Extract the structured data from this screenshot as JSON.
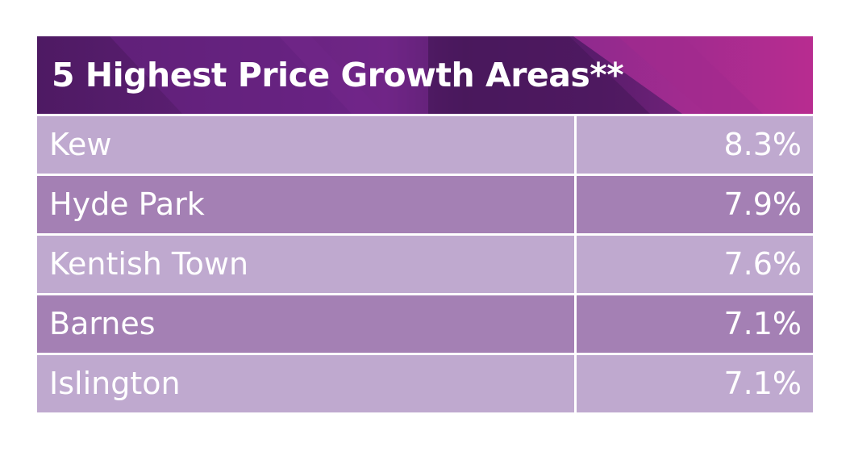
{
  "table": {
    "title": "5 Highest Price Growth Areas**",
    "rows": [
      {
        "area": "Kew",
        "growth": "8.3%"
      },
      {
        "area": "Hyde Park",
        "growth": "7.9%"
      },
      {
        "area": "Kentish Town",
        "growth": "7.6%"
      },
      {
        "area": "Barnes",
        "growth": "7.1%"
      },
      {
        "area": "Islington",
        "growth": "7.1%"
      }
    ]
  },
  "colors": {
    "header_dark": "#4e1a63",
    "header_mid": "#6e2486",
    "header_accent": "#b3288f",
    "row_light": "#bfa9cf",
    "row_dark": "#a480b4",
    "text": "#ffffff"
  }
}
